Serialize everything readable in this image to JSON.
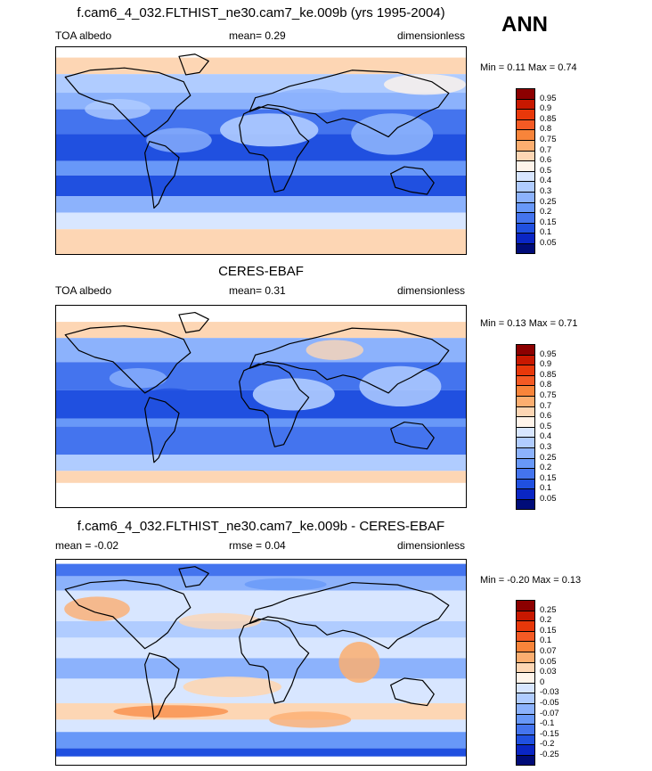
{
  "season": "ANN",
  "chart_data": [
    {
      "type": "heatmap",
      "title": "f.cam6_4_032.FLTHIST_ne30.cam7_ke.009b (yrs 1995-2004)",
      "variable": "TOA albedo",
      "stat_left": "",
      "stat_mid": "mean=   0.29",
      "units": "dimensionless",
      "minmax": "Min =   0.11  Max =   0.74",
      "min": 0.11,
      "max": 0.74,
      "mean": 0.29,
      "levels": [
        "0.95",
        "0.9",
        "0.85",
        "0.8",
        "0.75",
        "0.7",
        "0.6",
        "0.5",
        "0.4",
        "0.3",
        "0.25",
        "0.2",
        "0.15",
        "0.1",
        "0.05"
      ],
      "colors": [
        "#8c0000",
        "#c81800",
        "#e8380a",
        "#f45a24",
        "#f8843a",
        "#fcae70",
        "#fdd6b4",
        "#fff4ea",
        "#d8e6ff",
        "#b0ccff",
        "#8cb2fc",
        "#6898f8",
        "#4474ee",
        "#2050e0",
        "#0a26c4",
        "#000c78"
      ]
    },
    {
      "type": "heatmap",
      "title": "CERES-EBAF",
      "variable": "TOA albedo",
      "stat_left": "",
      "stat_mid": "mean=   0.31",
      "units": "dimensionless",
      "minmax": "Min =   0.13  Max =   0.71",
      "min": 0.13,
      "max": 0.71,
      "mean": 0.31,
      "levels": [
        "0.95",
        "0.9",
        "0.85",
        "0.8",
        "0.75",
        "0.7",
        "0.6",
        "0.5",
        "0.4",
        "0.3",
        "0.25",
        "0.2",
        "0.15",
        "0.1",
        "0.05"
      ],
      "colors": [
        "#8c0000",
        "#c81800",
        "#e8380a",
        "#f45a24",
        "#f8843a",
        "#fcae70",
        "#fdd6b4",
        "#fff4ea",
        "#d8e6ff",
        "#b0ccff",
        "#8cb2fc",
        "#6898f8",
        "#4474ee",
        "#2050e0",
        "#0a26c4",
        "#000c78"
      ]
    },
    {
      "type": "heatmap",
      "title": "f.cam6_4_032.FLTHIST_ne30.cam7_ke.009b - CERES-EBAF",
      "variable": "",
      "stat_left": "mean =   -0.02",
      "stat_mid": "rmse =   0.04",
      "units": "dimensionless",
      "minmax": "Min =   -0.20  Max =   0.13",
      "min": -0.2,
      "max": 0.13,
      "mean": -0.02,
      "rmse": 0.04,
      "levels": [
        "0.25",
        "0.2",
        "0.15",
        "0.1",
        "0.07",
        "0.05",
        "0.03",
        "0",
        "-0.03",
        "-0.05",
        "-0.07",
        "-0.1",
        "-0.15",
        "-0.2",
        "-0.25"
      ],
      "colors": [
        "#8c0000",
        "#c81800",
        "#e8380a",
        "#f45a24",
        "#f8843a",
        "#fcae70",
        "#fdd6b4",
        "#fff4ea",
        "#d8e6ff",
        "#b0ccff",
        "#8cb2fc",
        "#6898f8",
        "#4474ee",
        "#2050e0",
        "#0a26c4",
        "#000c78"
      ]
    }
  ]
}
